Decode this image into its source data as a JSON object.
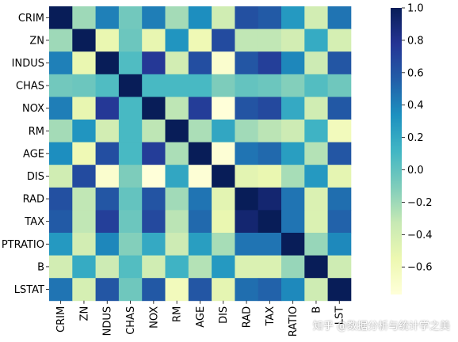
{
  "chart_data": {
    "type": "heatmap",
    "labels": [
      "CRIM",
      "ZN",
      "INDUS",
      "CHAS",
      "NOX",
      "RM",
      "AGE",
      "DIS",
      "RAD",
      "TAX",
      "PTRATIO",
      "B",
      "LSTAT"
    ],
    "x_tick_labels": [
      "CRIM",
      "ZN",
      "NDUS",
      "CHAS",
      "NOX",
      "RM",
      "AGE",
      "DIS",
      "RAD",
      "TAX",
      "RATIO",
      "B",
      "LST"
    ],
    "y_tick_labels": [
      "CRIM",
      "ZN",
      "INDUS",
      "CHAS",
      "NOX",
      "RM",
      "AGE",
      "DIS",
      "RAD",
      "TAX",
      "PTRATIO",
      "B",
      "LSTAT"
    ],
    "matrix": [
      [
        1.0,
        -0.2,
        0.41,
        -0.06,
        0.42,
        -0.22,
        0.35,
        -0.38,
        0.63,
        0.58,
        0.29,
        -0.39,
        0.46
      ],
      [
        -0.2,
        1.0,
        -0.53,
        -0.04,
        -0.52,
        0.31,
        -0.57,
        0.66,
        -0.31,
        -0.31,
        -0.39,
        0.18,
        -0.41
      ],
      [
        0.41,
        -0.53,
        1.0,
        0.06,
        0.76,
        -0.39,
        0.64,
        -0.71,
        0.6,
        0.72,
        0.38,
        -0.36,
        0.6
      ],
      [
        -0.06,
        -0.04,
        0.06,
        1.0,
        0.09,
        0.09,
        0.09,
        -0.1,
        -0.01,
        -0.04,
        -0.12,
        0.05,
        -0.05
      ],
      [
        0.42,
        -0.52,
        0.76,
        0.09,
        1.0,
        -0.3,
        0.73,
        -0.77,
        0.61,
        0.67,
        0.19,
        -0.38,
        0.59
      ],
      [
        -0.22,
        0.31,
        -0.39,
        0.09,
        -0.3,
        1.0,
        -0.24,
        0.21,
        -0.21,
        -0.29,
        -0.36,
        0.13,
        -0.61
      ],
      [
        0.35,
        -0.57,
        0.64,
        0.09,
        0.73,
        -0.24,
        1.0,
        -0.75,
        0.46,
        0.51,
        0.26,
        -0.27,
        0.6
      ],
      [
        -0.38,
        0.66,
        -0.71,
        -0.1,
        -0.77,
        0.21,
        -0.75,
        1.0,
        -0.49,
        -0.53,
        -0.23,
        0.29,
        -0.5
      ],
      [
        0.63,
        -0.31,
        0.6,
        -0.01,
        0.61,
        -0.21,
        0.46,
        -0.49,
        1.0,
        0.91,
        0.46,
        -0.44,
        0.49
      ],
      [
        0.58,
        -0.31,
        0.72,
        -0.04,
        0.67,
        -0.29,
        0.51,
        -0.53,
        0.91,
        1.0,
        0.46,
        -0.44,
        0.54
      ],
      [
        0.29,
        -0.39,
        0.38,
        -0.12,
        0.19,
        -0.36,
        0.26,
        -0.23,
        0.46,
        0.46,
        1.0,
        -0.18,
        0.37
      ],
      [
        -0.39,
        0.18,
        -0.36,
        0.05,
        -0.38,
        0.13,
        -0.27,
        0.29,
        -0.44,
        -0.44,
        -0.18,
        1.0,
        -0.37
      ],
      [
        0.46,
        -0.41,
        0.6,
        -0.05,
        0.59,
        -0.61,
        0.6,
        -0.5,
        0.49,
        0.54,
        0.37,
        -0.37,
        1.0
      ]
    ],
    "colormap": "YlGnBu",
    "colorbar": {
      "min": -0.77,
      "max": 1.0,
      "ticks": [
        1.0,
        0.8,
        0.6,
        0.4,
        0.2,
        0.0,
        -0.2,
        -0.4,
        -0.6
      ],
      "tick_labels": [
        "1.0",
        "0.8",
        "0.6",
        "0.4",
        "0.2",
        "0.0",
        "−0.2",
        "−0.4",
        "−0.6"
      ]
    },
    "colorscale": [
      "#ffffd9",
      "#edf8b1",
      "#c7e9b4",
      "#7fcdbb",
      "#41b6c4",
      "#1d91c0",
      "#225ea8",
      "#253494",
      "#081d58"
    ]
  },
  "watermark": "知乎 @数据分析与统计学之美"
}
